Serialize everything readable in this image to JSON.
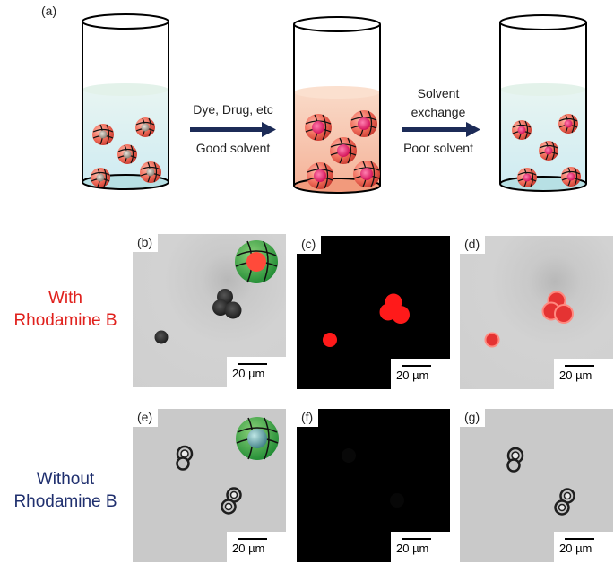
{
  "panel_a": {
    "label": "(a)",
    "step1_line1": "Dye, Drug, etc",
    "step1_line2": "Good solvent",
    "step2_line1": "Solvent",
    "step2_line2": "exchange",
    "step2_line3": "Poor solvent"
  },
  "panels": {
    "b": "(b)",
    "c": "(c)",
    "d": "(d)",
    "e": "(e)",
    "f": "(f)",
    "g": "(g)"
  },
  "scale_label": "20 µm",
  "rows": {
    "with_line1": "With",
    "with_line2": "Rhodamine B",
    "without_line1": "Without",
    "without_line2": "Rhodamine B"
  },
  "colors": {
    "with_label": "#e0201c",
    "without_label": "#1f2f6e",
    "arrow": "#1c2b57",
    "fluorescence": "#ff1a1a",
    "liquid_clear": "#d9eef3",
    "liquid_dyed": "#f6b79c"
  }
}
